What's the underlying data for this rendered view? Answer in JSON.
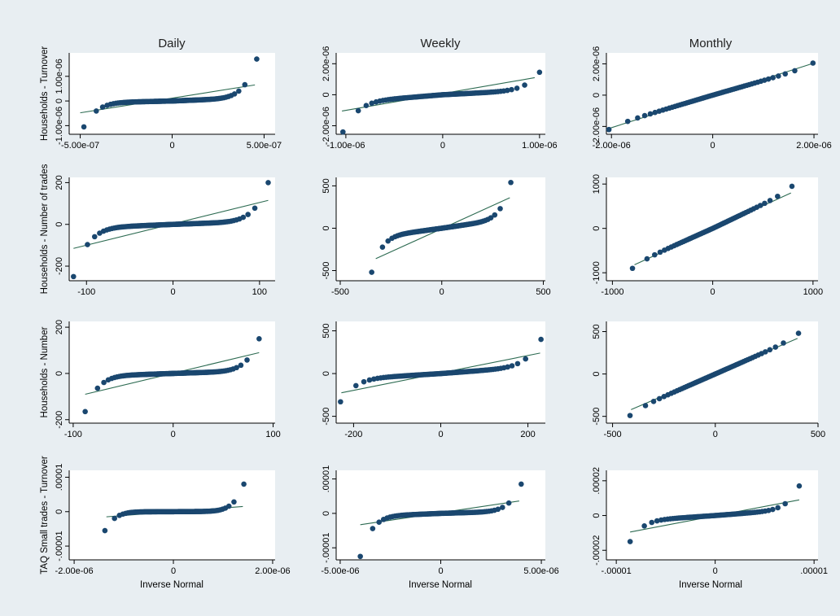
{
  "figure": {
    "background": "#e8eef2",
    "plot_background": "#ffffff",
    "marker_color": "#1a476f",
    "line_color": "#2d6b52",
    "column_titles": [
      "Daily",
      "Weekly",
      "Monthly"
    ],
    "x_axis_title": "Inverse Normal"
  },
  "chart_data": [
    {
      "type": "scatter",
      "panel": "r0c0",
      "ylabel": "Households - Turnover",
      "xlim": [
        -5.6e-07,
        5.6e-07
      ],
      "ylim": [
        -1.35e-06,
        1.95e-06
      ],
      "xticks": [
        -5e-07,
        0,
        5e-07
      ],
      "xticklabels": [
        "-5.00e-07",
        "0",
        "5.00e-07"
      ],
      "yticks": [
        -1e-06,
        0,
        1e-06
      ],
      "yticklabels": [
        "-1.00e-06",
        "0",
        "1.00e-06"
      ],
      "shape": "flat",
      "points": 160,
      "xmin": -4.8e-07,
      "xmax": 4.6e-07,
      "q_low": -1.05e-06,
      "q_high": 1.7e-06,
      "fit": [
        -5e-07,
        -4.8e-07,
        4.5e-07,
        6.5e-07
      ]
    },
    {
      "type": "scatter",
      "panel": "r0c1",
      "ylabel": "",
      "xlim": [
        -1.1e-06,
        1.06e-06
      ],
      "ylim": [
        -2.55e-06,
        2.7e-06
      ],
      "xticks": [
        -1e-06,
        0,
        1e-06
      ],
      "xticklabels": [
        "-1.00e-06",
        "0",
        "1.00e-06"
      ],
      "yticks": [
        -2e-06,
        0,
        2e-06
      ],
      "yticklabels": [
        "-2.00e-06",
        "0",
        "2.00e-06"
      ],
      "shape": "mild",
      "points": 110,
      "xmin": -1.03e-06,
      "xmax": 1e-06,
      "q_low": -2.4e-06,
      "q_high": 1.45e-06,
      "fit": [
        -1.04e-06,
        -1.05e-06,
        9.5e-07,
        1.1e-06
      ]
    },
    {
      "type": "scatter",
      "panel": "r0c2",
      "ylabel": "",
      "xlim": [
        -2.1e-06,
        2.08e-06
      ],
      "ylim": [
        -2.5e-06,
        2.7e-06
      ],
      "xticks": [
        -2e-06,
        0,
        2e-06
      ],
      "xticklabels": [
        "-2.00e-06",
        "0",
        "2.00e-06"
      ],
      "yticks": [
        -2e-06,
        0,
        2e-06
      ],
      "yticklabels": [
        "-2.00e-06",
        "0",
        "2.00e-06"
      ],
      "shape": "linear",
      "points": 60,
      "xmin": -2.05e-06,
      "xmax": 1.98e-06,
      "q_low": -2.2e-06,
      "q_high": 2.05e-06,
      "fit": [
        -2.02e-06,
        -2.1e-06,
        1.95e-06,
        2e-06
      ]
    },
    {
      "type": "scatter",
      "panel": "r1c0",
      "ylabel": "Households - Number of trades",
      "xlim": [
        -120,
        118
      ],
      "ylim": [
        -270,
        225
      ],
      "xticks": [
        -100,
        0,
        100
      ],
      "xticklabels": [
        "-100",
        "0",
        "100"
      ],
      "yticks": [
        -200,
        0,
        200
      ],
      "yticklabels": [
        "-200",
        "0",
        "200"
      ],
      "shape": "flat",
      "points": 160,
      "xmin": -115,
      "xmax": 110,
      "q_low": -250,
      "q_high": 200,
      "fit": [
        -115,
        -115,
        110,
        115
      ]
    },
    {
      "type": "scatter",
      "panel": "r1c1",
      "ylabel": "",
      "xlim": [
        -520,
        510
      ],
      "ylim": [
        -620,
        600
      ],
      "xticks": [
        -500,
        0,
        500
      ],
      "xticklabels": [
        "-500",
        "0",
        "500"
      ],
      "yticks": [
        -500,
        0,
        500
      ],
      "yticklabels": [
        "-500",
        "0",
        "500"
      ],
      "shape": "mild",
      "points": 110,
      "xmin": -345,
      "xmax": 340,
      "q_low": -520,
      "q_high": 540,
      "fit": [
        -325,
        -360,
        335,
        360
      ]
    },
    {
      "type": "scatter",
      "panel": "r1c2",
      "ylabel": "",
      "xlim": [
        -1060,
        1050
      ],
      "ylim": [
        -1180,
        1150
      ],
      "xticks": [
        -1000,
        0,
        1000
      ],
      "xticklabels": [
        "-1000",
        "0",
        "1000"
      ],
      "yticks": [
        -1000,
        0,
        1000
      ],
      "yticklabels": [
        "-1000",
        "0",
        "1000"
      ],
      "shape": "linear",
      "points": 60,
      "xmin": -800,
      "xmax": 790,
      "q_low": -900,
      "q_high": 950,
      "fit": [
        -780,
        -820,
        780,
        800
      ]
    },
    {
      "type": "scatter",
      "panel": "r2c0",
      "ylabel": "Households - Number",
      "xlim": [
        -104,
        102
      ],
      "ylim": [
        -215,
        225
      ],
      "xticks": [
        -100,
        0,
        100
      ],
      "xticklabels": [
        "-100",
        "0",
        "100"
      ],
      "yticks": [
        -200,
        0,
        200
      ],
      "yticklabels": [
        "-200",
        "0",
        "200"
      ],
      "shape": "flat",
      "points": 160,
      "xmin": -88,
      "xmax": 86,
      "q_low": -165,
      "q_high": 150,
      "fit": [
        -88,
        -90,
        86,
        90
      ]
    },
    {
      "type": "scatter",
      "panel": "r2c1",
      "ylabel": "",
      "xlim": [
        -240,
        240
      ],
      "ylim": [
        -580,
        610
      ],
      "xticks": [
        -200,
        0,
        200
      ],
      "xticklabels": [
        "-200",
        "0",
        "200"
      ],
      "yticks": [
        -500,
        0,
        500
      ],
      "yticklabels": [
        "-500",
        "0",
        "500"
      ],
      "shape": "mild",
      "points": 110,
      "xmin": -230,
      "xmax": 230,
      "q_low": -330,
      "q_high": 400,
      "fit": [
        -228,
        -225,
        228,
        240
      ]
    },
    {
      "type": "scatter",
      "panel": "r2c2",
      "ylabel": "",
      "xlim": [
        -530,
        500
      ],
      "ylim": [
        -580,
        620
      ],
      "xticks": [
        -500,
        0,
        500
      ],
      "xticklabels": [
        "-500",
        "0",
        "500"
      ],
      "yticks": [
        -500,
        0,
        500
      ],
      "yticklabels": [
        "-500",
        "0",
        "500"
      ],
      "shape": "linear",
      "points": 60,
      "xmin": -415,
      "xmax": 405,
      "q_low": -490,
      "q_high": 480,
      "fit": [
        -410,
        -420,
        400,
        420
      ]
    },
    {
      "type": "scatter",
      "panel": "r3c0",
      "ylabel": "TAQ Small trades - Turnover",
      "xlim": [
        -2.1e-06,
        2.05e-06
      ],
      "ylim": [
        -1.4e-05,
        1.2e-05
      ],
      "xticks": [
        -2e-06,
        0,
        2e-06
      ],
      "xticklabels": [
        "-2.00e-06",
        "0",
        "2.00e-06"
      ],
      "yticks": [
        -1e-05,
        0,
        1e-05
      ],
      "yticklabels": [
        "-.00001",
        "0",
        ".00001"
      ],
      "shape": "veryflat",
      "points": 160,
      "xmin": -1.38e-06,
      "xmax": 1.42e-06,
      "q_low": -5.5e-06,
      "q_high": 8e-06,
      "fit": [
        -1.35e-06,
        -1.5e-06,
        1.4e-06,
        1.5e-06
      ]
    },
    {
      "type": "scatter",
      "panel": "r3c1",
      "ylabel": "",
      "xlim": [
        -5.2e-06,
        5.2e-06
      ],
      "ylim": [
        -1.35e-05,
        1.25e-05
      ],
      "xticks": [
        -5e-06,
        0,
        5e-06
      ],
      "xticklabels": [
        "-5.00e-06",
        "0",
        "5.00e-06"
      ],
      "yticks": [
        -1e-05,
        0,
        1e-05
      ],
      "yticklabels": [
        "-.00001",
        "0",
        ".00001"
      ],
      "shape": "flat",
      "points": 110,
      "xmin": -4e-06,
      "xmax": 4e-06,
      "q_low": -1.25e-05,
      "q_high": 8.5e-06,
      "fit": [
        -4e-06,
        -3.3e-06,
        3.9e-06,
        3.6e-06
      ]
    },
    {
      "type": "scatter",
      "panel": "r3c2",
      "ylabel": "",
      "xlim": [
        -1.1e-05,
        1.04e-05
      ],
      "ylim": [
        -2.55e-05,
        2.6e-05
      ],
      "xticks": [
        -1e-05,
        0,
        1e-05
      ],
      "xticklabels": [
        "-.00001",
        "0",
        ".00001"
      ],
      "yticks": [
        -2e-05,
        0,
        2e-05
      ],
      "yticklabels": [
        "-.00002",
        "0",
        ".00002"
      ],
      "shape": "mild",
      "points": 80,
      "xmin": -8.6e-06,
      "xmax": 8.5e-06,
      "q_low": -1.5e-05,
      "q_high": 1.7e-05,
      "fit": [
        -8.6e-06,
        -9.5e-06,
        8.5e-06,
        9e-06
      ]
    }
  ]
}
